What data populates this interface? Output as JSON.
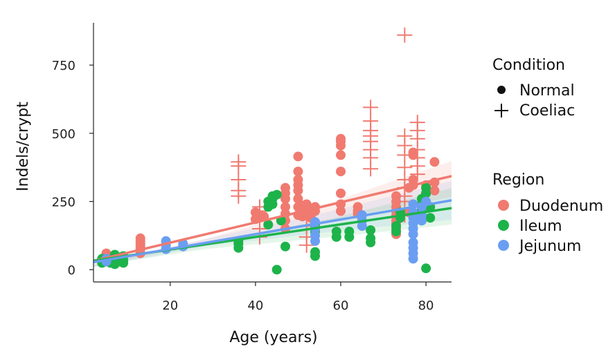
{
  "chart_data": {
    "type": "scatter",
    "title": "",
    "xlabel": "Age (years)",
    "ylabel": "Indels/crypt",
    "xlim": [
      2,
      86
    ],
    "ylim": [
      -45,
      905
    ],
    "x_ticks": [
      20,
      40,
      60,
      80
    ],
    "y_ticks": [
      0,
      250,
      500,
      750
    ],
    "grid": false,
    "legend_placement": "right",
    "legends": [
      {
        "title": "Condition",
        "entries": [
          {
            "label": "Normal",
            "shape": "dot"
          },
          {
            "label": "Coeliac",
            "shape": "cross"
          }
        ]
      },
      {
        "title": "Region",
        "entries": [
          {
            "label": "Duodenum",
            "color": "#F07A70"
          },
          {
            "label": "Ileum",
            "color": "#1DB34A"
          },
          {
            "label": "Jejunum",
            "color": "#6A9EF2"
          }
        ]
      }
    ],
    "series": [
      {
        "name": "Duodenum",
        "color": "#F07A70",
        "trend": {
          "intercept": 25,
          "slope": 3.7
        },
        "normal": [
          [
            5,
            50
          ],
          [
            5,
            60
          ],
          [
            13,
            60
          ],
          [
            13,
            75
          ],
          [
            13,
            85
          ],
          [
            13,
            95
          ],
          [
            13,
            105
          ],
          [
            13,
            115
          ],
          [
            40,
            185
          ],
          [
            40,
            210
          ],
          [
            41,
            200
          ],
          [
            42,
            195
          ],
          [
            47,
            150
          ],
          [
            47,
            180
          ],
          [
            47,
            205
          ],
          [
            47,
            230
          ],
          [
            47,
            260
          ],
          [
            47,
            280
          ],
          [
            47,
            300
          ],
          [
            50,
            200
          ],
          [
            50,
            230
          ],
          [
            50,
            260
          ],
          [
            50,
            290
          ],
          [
            50,
            310
          ],
          [
            50,
            330
          ],
          [
            50,
            360
          ],
          [
            50,
            415
          ],
          [
            51,
            195
          ],
          [
            51,
            210
          ],
          [
            51,
            235
          ],
          [
            52,
            200
          ],
          [
            52,
            215
          ],
          [
            52,
            240
          ],
          [
            53,
            190
          ],
          [
            53,
            205
          ],
          [
            53,
            225
          ],
          [
            54,
            215
          ],
          [
            54,
            230
          ],
          [
            60,
            215
          ],
          [
            60,
            240
          ],
          [
            60,
            280
          ],
          [
            60,
            360
          ],
          [
            60,
            420
          ],
          [
            60,
            455
          ],
          [
            60,
            470
          ],
          [
            60,
            480
          ],
          [
            64,
            205
          ],
          [
            64,
            215
          ],
          [
            64,
            230
          ],
          [
            73,
            130
          ],
          [
            73,
            150
          ],
          [
            73,
            170
          ],
          [
            73,
            180
          ],
          [
            73,
            200
          ],
          [
            73,
            215
          ],
          [
            73,
            230
          ],
          [
            73,
            250
          ],
          [
            73,
            270
          ],
          [
            76,
            210
          ],
          [
            76,
            300
          ],
          [
            77,
            310
          ],
          [
            77,
            330
          ],
          [
            77,
            420
          ],
          [
            77,
            430
          ],
          [
            80,
            280
          ],
          [
            80,
            310
          ],
          [
            82,
            290
          ],
          [
            82,
            320
          ],
          [
            82,
            395
          ]
        ],
        "coeliac": [
          [
            36,
            270
          ],
          [
            36,
            290
          ],
          [
            36,
            330
          ],
          [
            36,
            380
          ],
          [
            36,
            395
          ],
          [
            41,
            120
          ],
          [
            41,
            150
          ],
          [
            41,
            185
          ],
          [
            41,
            200
          ],
          [
            41,
            215
          ],
          [
            41,
            230
          ],
          [
            52,
            90
          ],
          [
            52,
            120
          ],
          [
            52,
            160
          ],
          [
            52,
            195
          ],
          [
            67,
            370
          ],
          [
            67,
            410
          ],
          [
            67,
            440
          ],
          [
            67,
            470
          ],
          [
            67,
            490
          ],
          [
            67,
            510
          ],
          [
            67,
            545
          ],
          [
            67,
            595
          ],
          [
            75,
            200
          ],
          [
            75,
            250
          ],
          [
            75,
            270
          ],
          [
            75,
            300
          ],
          [
            75,
            330
          ],
          [
            75,
            375
          ],
          [
            75,
            420
          ],
          [
            75,
            455
          ],
          [
            75,
            490
          ],
          [
            75,
            860
          ],
          [
            78,
            350
          ],
          [
            78,
            380
          ],
          [
            78,
            410
          ],
          [
            78,
            440
          ],
          [
            78,
            480
          ],
          [
            78,
            510
          ],
          [
            78,
            540
          ]
        ]
      },
      {
        "name": "Ileum",
        "color": "#1DB34A",
        "trend": {
          "intercept": 28,
          "slope": 2.3
        },
        "normal": [
          [
            4,
            25
          ],
          [
            4,
            40
          ],
          [
            5,
            30
          ],
          [
            6,
            25
          ],
          [
            6,
            35
          ],
          [
            7,
            20
          ],
          [
            7,
            45
          ],
          [
            7,
            55
          ],
          [
            8,
            30
          ],
          [
            8,
            45
          ],
          [
            9,
            25
          ],
          [
            9,
            35
          ],
          [
            9,
            50
          ],
          [
            36,
            80
          ],
          [
            36,
            95
          ],
          [
            36,
            105
          ],
          [
            43,
            165
          ],
          [
            43,
            230
          ],
          [
            43,
            250
          ],
          [
            44,
            240
          ],
          [
            44,
            260
          ],
          [
            44,
            270
          ],
          [
            45,
            0
          ],
          [
            45,
            275
          ],
          [
            46,
            180
          ],
          [
            47,
            85
          ],
          [
            54,
            50
          ],
          [
            54,
            65
          ],
          [
            54,
            140
          ],
          [
            54,
            165
          ],
          [
            59,
            120
          ],
          [
            59,
            140
          ],
          [
            62,
            120
          ],
          [
            62,
            140
          ],
          [
            67,
            100
          ],
          [
            67,
            115
          ],
          [
            67,
            145
          ],
          [
            73,
            140
          ],
          [
            73,
            160
          ],
          [
            74,
            190
          ],
          [
            74,
            210
          ],
          [
            79,
            180
          ],
          [
            79,
            200
          ],
          [
            79,
            220
          ],
          [
            79,
            240
          ],
          [
            79,
            260
          ],
          [
            80,
            5
          ],
          [
            80,
            280
          ],
          [
            80,
            300
          ],
          [
            81,
            190
          ],
          [
            81,
            230
          ]
        ],
        "coeliac": []
      },
      {
        "name": "Jejunum",
        "color": "#6A9EF2",
        "trend": {
          "intercept": 22,
          "slope": 2.7
        },
        "normal": [
          [
            5,
            30
          ],
          [
            5,
            40
          ],
          [
            19,
            75
          ],
          [
            19,
            90
          ],
          [
            19,
            105
          ],
          [
            23,
            85
          ],
          [
            23,
            95
          ],
          [
            54,
            105
          ],
          [
            54,
            125
          ],
          [
            54,
            150
          ],
          [
            54,
            175
          ],
          [
            65,
            160
          ],
          [
            65,
            180
          ],
          [
            65,
            200
          ],
          [
            77,
            40
          ],
          [
            77,
            60
          ],
          [
            77,
            80
          ],
          [
            77,
            100
          ],
          [
            77,
            130
          ],
          [
            77,
            150
          ],
          [
            77,
            170
          ],
          [
            77,
            190
          ],
          [
            77,
            210
          ],
          [
            77,
            240
          ],
          [
            79,
            180
          ],
          [
            79,
            200
          ],
          [
            79,
            230
          ],
          [
            80,
            250
          ]
        ],
        "coeliac": []
      }
    ]
  }
}
